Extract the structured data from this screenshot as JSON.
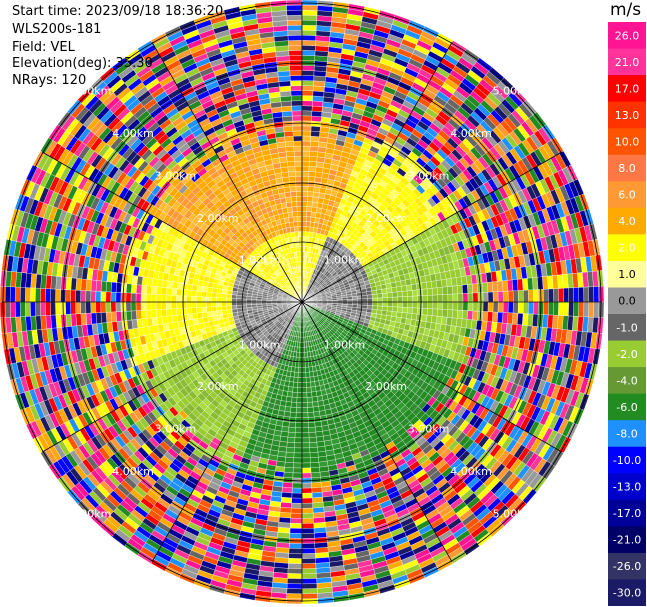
{
  "header": {
    "start_time": "Start time: 2023/09/18 18:36:20",
    "instrument": "WLS200s-181",
    "field": "Field: VEL",
    "elevation": "Elevation(deg): 35.30",
    "nrays": "NRays: 120"
  },
  "colorbar": {
    "unit": "m/s",
    "ticks": [
      "26.0",
      "21.0",
      "17.0",
      "13.0",
      "10.0",
      "8.0",
      "6.0",
      "4.0",
      "2.0",
      "1.0",
      "0.0",
      "-1.0",
      "-2.0",
      "-4.0",
      "-6.0",
      "-8.0",
      "-10.0",
      "-13.0",
      "-17.0",
      "-21.0",
      "-26.0",
      "-30.0"
    ],
    "colors": [
      "#ff1493",
      "#ff3399",
      "#ff0000",
      "#ff3300",
      "#ff5500",
      "#ff7744",
      "#ff9933",
      "#ffaa00",
      "#ffff00",
      "#ffff99",
      "#999999",
      "#666666",
      "#99cc33",
      "#669933",
      "#228b22",
      "#1e90ff",
      "#0000ff",
      "#0000cc",
      "#000099",
      "#000066",
      "#333366",
      "#1a1a66"
    ]
  },
  "chart_data": {
    "type": "heatmap",
    "subtype": "polar-ppi",
    "field": "VEL",
    "units": "m/s",
    "nrays": 120,
    "range_ring_labels": [
      "1.00km",
      "2.00km",
      "3.00km",
      "4.00km",
      "5.00km"
    ],
    "spoke_angles_deg": [
      0,
      30,
      60,
      90,
      120,
      150,
      180,
      210,
      240,
      270,
      300,
      330
    ],
    "sector_pattern": [
      {
        "from": 300,
        "to": 20,
        "near": "yellow",
        "mid": "orange"
      },
      {
        "from": 20,
        "to": 60,
        "near": "gray",
        "mid": "yellow"
      },
      {
        "from": 60,
        "to": 110,
        "near": "gray",
        "mid": "light-green"
      },
      {
        "from": 110,
        "to": 200,
        "near": "green",
        "mid": "green"
      },
      {
        "from": 200,
        "to": 250,
        "near": "gray",
        "mid": "light-green"
      },
      {
        "from": 250,
        "to": 300,
        "near": "gray",
        "mid": "yellow"
      }
    ],
    "outer_region": "noisy (random velocities) beyond ~3 km"
  }
}
